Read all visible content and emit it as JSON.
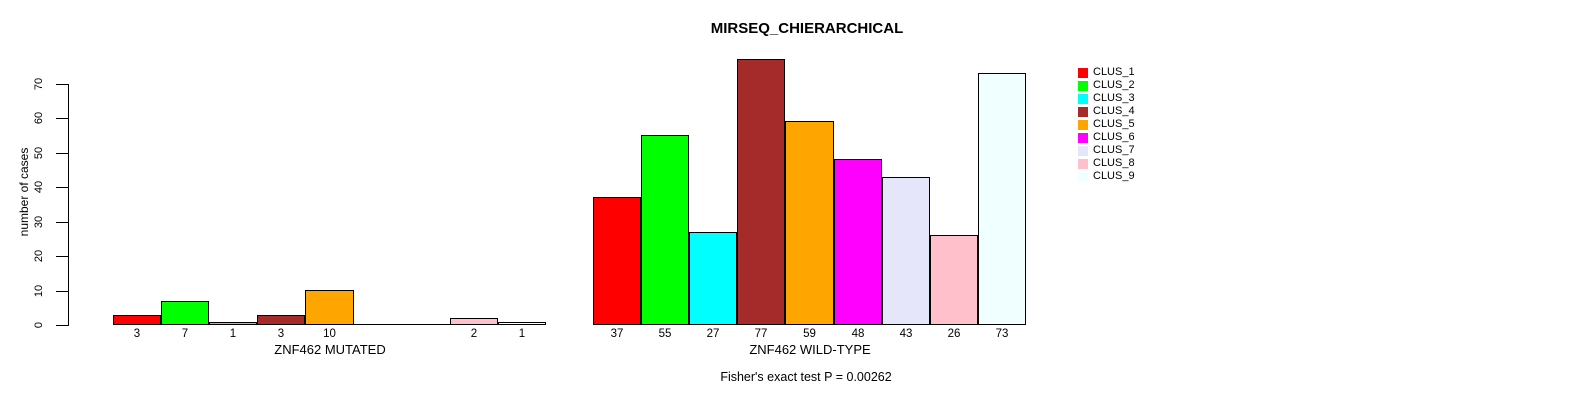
{
  "chart_data": {
    "type": "bar",
    "title": "MIRSEQ_CHIERARCHICAL",
    "ylabel": "number of cases",
    "ylim": [
      0,
      77
    ],
    "yticks": [
      0,
      10,
      20,
      30,
      40,
      50,
      60,
      70
    ],
    "grid": false,
    "categories": [
      "CLUS_1",
      "CLUS_2",
      "CLUS_3",
      "CLUS_4",
      "CLUS_5",
      "CLUS_6",
      "CLUS_7",
      "CLUS_8",
      "CLUS_9"
    ],
    "legend": {
      "position": "top-right",
      "entries": [
        {
          "label": "CLUS_1",
          "color": "#FF0000"
        },
        {
          "label": "CLUS_2",
          "color": "#00FF00"
        },
        {
          "label": "CLUS_3",
          "color": "#00FFFF"
        },
        {
          "label": "CLUS_4",
          "color": "#A52A2A"
        },
        {
          "label": "CLUS_5",
          "color": "#FFA500"
        },
        {
          "label": "CLUS_6",
          "color": "#FF00FF"
        },
        {
          "label": "CLUS_7",
          "color": "#E6E6FA"
        },
        {
          "label": "CLUS_8",
          "color": "#FFC0CB"
        },
        {
          "label": "CLUS_9",
          "color": "#F0FFFF"
        }
      ]
    },
    "groups": [
      {
        "label": "ZNF462 MUTATED",
        "values": [
          3,
          7,
          1,
          3,
          10,
          0,
          0,
          2,
          1
        ],
        "bar_labels": [
          "3",
          "7",
          "1",
          "3",
          "10",
          "",
          "",
          "2",
          "1"
        ]
      },
      {
        "label": "ZNF462 WILD-TYPE",
        "values": [
          37,
          55,
          27,
          77,
          59,
          48,
          43,
          26,
          73
        ],
        "bar_labels": [
          "37",
          "55",
          "27",
          "77",
          "59",
          "48",
          "43",
          "26",
          "73"
        ]
      }
    ],
    "annotation": "Fisher's exact test P = 0.00262"
  }
}
